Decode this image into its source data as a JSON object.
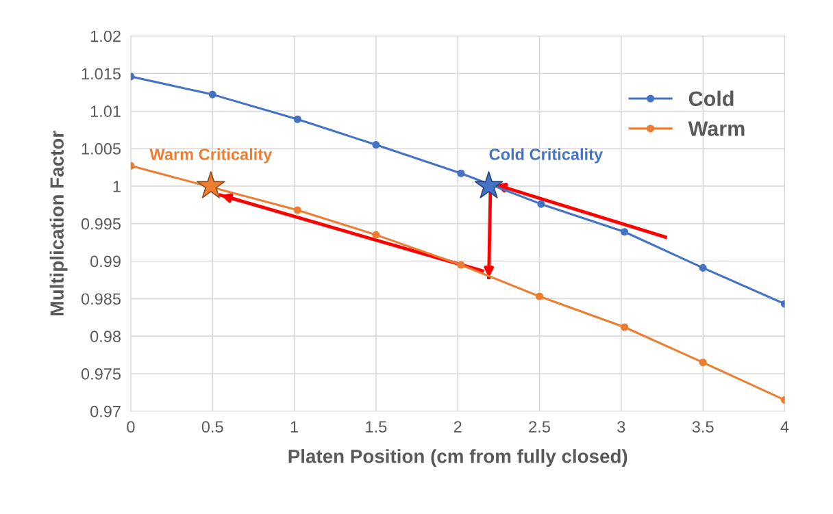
{
  "chart_data": {
    "type": "line",
    "xlabel": "Platen Position (cm from fully closed)",
    "ylabel": "Multiplication Factor",
    "xlim": [
      0,
      4
    ],
    "xticks": [
      0,
      0.5,
      1,
      1.5,
      2,
      2.5,
      3,
      3.5,
      4
    ],
    "ylim": [
      0.97,
      1.02
    ],
    "yticks": [
      0.97,
      0.975,
      0.98,
      0.985,
      0.99,
      0.995,
      1,
      1.005,
      1.01,
      1.015,
      1.02
    ],
    "grid": true,
    "legend": "top right",
    "marker": "circle",
    "line_style": "solid",
    "series": [
      {
        "name": "Cold",
        "color": "#4472c4",
        "x": [
          0,
          0.5,
          1.02,
          1.5,
          2.02,
          2.51,
          3.02,
          3.5,
          4
        ],
        "values": [
          1.0146,
          1.0122,
          1.0089,
          1.0055,
          1.0017,
          0.9976,
          0.9939,
          0.9891,
          0.9843
        ]
      },
      {
        "name": "Warm",
        "color": "#ed7d31",
        "x": [
          0,
          1.02,
          1.5,
          2.02,
          2.5,
          3.02,
          3.5,
          4
        ],
        "values": [
          1.0027,
          0.9968,
          0.9935,
          0.9895,
          0.9853,
          0.9812,
          0.9765,
          0.9715
        ]
      },
      {
        "type": "scatter",
        "marker": "star",
        "color": "#ed7d31",
        "x": [
          0.49
        ],
        "values": [
          1.0
        ]
      },
      {
        "type": "scatter",
        "marker": "star",
        "color": "#4472c4",
        "x": [
          2.19
        ],
        "values": [
          1.0
        ]
      },
      {
        "type": "line",
        "marker": "none",
        "color": "#ff0000",
        "x": [
          3.27,
          2.23
        ],
        "values": [
          0.9932,
          1.0002
        ]
      },
      {
        "type": "line",
        "marker": "none",
        "color": "#ff0000",
        "x": [
          2.15,
          0.55
        ],
        "values": [
          0.9887,
          0.9988
        ]
      },
      {
        "type": "line",
        "marker": "none",
        "color": "#ff0000",
        "x": [
          2.2,
          2.19
        ],
        "values": [
          0.9995,
          0.9878
        ]
      }
    ],
    "annotations": [
      {
        "text": "Warm Criticality",
        "x": 0.49,
        "y": 1.0
      },
      {
        "text": "Cold Criticality",
        "x": 2.19,
        "y": 1.0
      }
    ]
  }
}
